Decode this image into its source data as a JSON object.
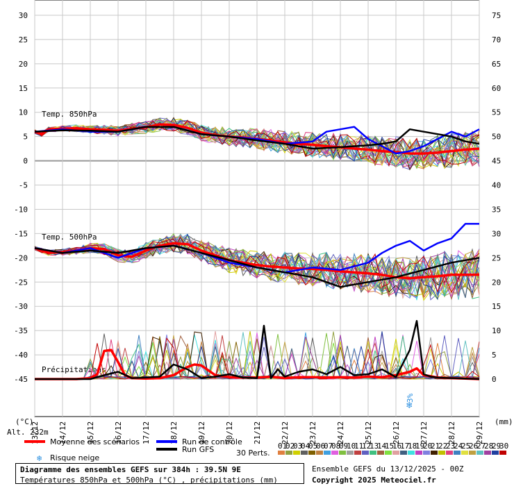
{
  "colors": {
    "mean": "#ff0000",
    "control": "#0000ff",
    "gfs": "#000000",
    "grid": "#c8c8c8",
    "snow_icon": "#2a8fe0"
  },
  "labels": {
    "temp850": "Temp. 850hPa",
    "temp500": "Temp. 500hPa",
    "precip": "Précipitations",
    "unit_left": "(°C)",
    "unit_right": "(mm)",
    "altitude": "Alt. 232m",
    "legend_mean": "Moyenne des scénarios",
    "legend_control": "Run de contrôle",
    "legend_gfs": "Run GFS",
    "legend_snow": "Risque neige",
    "perts_label": "30 Perts.",
    "snow_pct": "3%"
  },
  "pert_numbers": [
    "01",
    "02",
    "03",
    "04",
    "05",
    "06",
    "07",
    "08",
    "09",
    "10",
    "11",
    "12",
    "13",
    "14",
    "15",
    "16",
    "17",
    "18",
    "19",
    "20",
    "21",
    "22",
    "23",
    "24",
    "25",
    "26",
    "27",
    "28",
    "29",
    "30"
  ],
  "pert_colors": [
    "#e08040",
    "#90a040",
    "#d0d000",
    "#606060",
    "#806000",
    "#c08040",
    "#40a0e0",
    "#e060e0",
    "#80c040",
    "#a0a0a0",
    "#c04040",
    "#6060c0",
    "#40c080",
    "#a06040",
    "#80e040",
    "#e0a0a0",
    "#406080",
    "#40e0e0",
    "#c040c0",
    "#8080e0",
    "#402000",
    "#c0c000",
    "#e04080",
    "#4080c0",
    "#e0e040",
    "#c0a040",
    "#60c0c0",
    "#a040a0",
    "#2040a0",
    "#c00000"
  ],
  "info": {
    "title": "Diagramme des ensembles GEFS sur 384h : 39.5N 9E",
    "subtitle": "Températures 850hPa et 500hPa (°C) , précipitations (mm)",
    "ensemble": "Ensemble GEFS du 13/12/2025 - 00Z",
    "copyright": "Copyright 2025 Meteociel.fr"
  },
  "chart_data": {
    "type": "line",
    "x_dates": [
      "13/12",
      "14/12",
      "15/12",
      "16/12",
      "17/12",
      "18/12",
      "19/12",
      "20/12",
      "21/12",
      "22/12",
      "23/12",
      "24/12",
      "25/12",
      "26/12",
      "27/12",
      "28/12",
      "29/12"
    ],
    "xlim_hours": [
      0,
      384
    ],
    "left_axis": {
      "label": "(°C)",
      "ticks": [
        30,
        25,
        20,
        15,
        10,
        5,
        0,
        -5,
        -10,
        -15,
        -20,
        -25,
        -30,
        -35,
        -40,
        -45
      ],
      "ylim": [
        -45,
        30
      ]
    },
    "right_axis": {
      "label": "(mm)",
      "ticks": [
        75,
        70,
        65,
        60,
        55,
        50,
        45,
        40,
        35,
        30,
        25,
        20,
        15,
        10,
        5,
        0
      ],
      "ylim": [
        0,
        75
      ]
    },
    "grid": true,
    "series": [
      {
        "name": "Moyenne des scénarios",
        "panel": "Temp. 850hPa",
        "hours": [
          0,
          6,
          12,
          24,
          36,
          48,
          60,
          72,
          84,
          96,
          108,
          120,
          132,
          144,
          156,
          168,
          180,
          192,
          204,
          216,
          228,
          240,
          252,
          264,
          276,
          288,
          300,
          312,
          324,
          336,
          348,
          360,
          372,
          384
        ],
        "values": [
          6.0,
          5.5,
          6.5,
          6.6,
          6.7,
          6.5,
          6.4,
          6.2,
          6.6,
          6.9,
          7.5,
          7.4,
          6.8,
          5.8,
          5.3,
          5.0,
          4.8,
          4.5,
          4.2,
          3.8,
          3.5,
          3.3,
          3.0,
          2.8,
          2.5,
          2.3,
          2.0,
          1.8,
          1.5,
          1.5,
          1.7,
          2.0,
          2.3,
          2.5
        ]
      },
      {
        "name": "Moyenne des scénarios",
        "panel": "Temp. 500hPa",
        "hours": [
          0,
          6,
          12,
          24,
          36,
          48,
          60,
          72,
          84,
          96,
          108,
          120,
          132,
          144,
          156,
          168,
          180,
          192,
          204,
          216,
          228,
          240,
          252,
          264,
          276,
          288,
          300,
          312,
          324,
          336,
          348,
          360,
          372,
          384
        ],
        "values": [
          -18.0,
          -18.5,
          -19.0,
          -18.8,
          -18.5,
          -18.0,
          -18.2,
          -19.5,
          -19.8,
          -18.5,
          -17.5,
          -17.0,
          -17.2,
          -18.5,
          -19.5,
          -20.5,
          -21.0,
          -21.5,
          -21.8,
          -22.0,
          -22.2,
          -22.3,
          -22.5,
          -22.8,
          -23.0,
          -23.2,
          -23.5,
          -24.0,
          -24.2,
          -24.0,
          -23.8,
          -23.5,
          -23.5,
          -23.5
        ]
      },
      {
        "name": "Moyenne des scénarios",
        "panel": "Précipitations",
        "unit": "mm",
        "hours": [
          0,
          12,
          24,
          36,
          48,
          54,
          60,
          66,
          72,
          78,
          84,
          96,
          108,
          120,
          132,
          138,
          144,
          150,
          156,
          168,
          180,
          192,
          204,
          216,
          228,
          240,
          252,
          264,
          276,
          288,
          300,
          312,
          324,
          330,
          336,
          342,
          348,
          360,
          372,
          384
        ],
        "values": [
          0,
          0,
          0,
          0,
          0.2,
          1.0,
          5.8,
          6.0,
          3.5,
          0.8,
          0.2,
          0.1,
          0.2,
          0.8,
          2.5,
          3.0,
          2.8,
          1.8,
          0.8,
          0.4,
          0.3,
          0.3,
          0.5,
          0.2,
          0.4,
          0.4,
          0.3,
          0.4,
          0.3,
          0.5,
          0.4,
          0.8,
          1.5,
          2.2,
          0.8,
          0.6,
          0.3,
          0.2,
          0.1,
          0.0
        ]
      },
      {
        "name": "Run de contrôle",
        "panel": "Temp. 850hPa",
        "hours": [
          0,
          24,
          48,
          72,
          96,
          120,
          144,
          168,
          192,
          216,
          240,
          252,
          264,
          276,
          288,
          300,
          312,
          324,
          336,
          348,
          360,
          372,
          384
        ],
        "values": [
          6.0,
          6.5,
          6.0,
          6.0,
          7.0,
          7.0,
          5.5,
          5.0,
          4.5,
          3.5,
          4.0,
          6.0,
          6.5,
          7.0,
          4.5,
          3.0,
          1.5,
          2.0,
          3.0,
          4.5,
          6.0,
          5.0,
          6.5
        ]
      },
      {
        "name": "Run de contrôle",
        "panel": "Temp. 500hPa",
        "hours": [
          0,
          24,
          48,
          72,
          96,
          120,
          144,
          168,
          192,
          216,
          240,
          264,
          288,
          300,
          312,
          324,
          336,
          348,
          360,
          372,
          384
        ],
        "values": [
          -18.0,
          -19.0,
          -18.0,
          -20.0,
          -18.0,
          -17.5,
          -19.0,
          -21.0,
          -22.0,
          -23.0,
          -22.0,
          -22.5,
          -21.0,
          -19.0,
          -17.5,
          -16.5,
          -18.5,
          -17.0,
          -16.0,
          -13.0,
          -13.0
        ]
      },
      {
        "name": "Run GFS",
        "panel": "Temp. 850hPa",
        "hours": [
          0,
          24,
          48,
          72,
          96,
          120,
          144,
          168,
          192,
          216,
          240,
          264,
          288,
          300,
          312,
          324,
          336,
          348,
          360,
          372,
          384
        ],
        "values": [
          6.0,
          6.3,
          6.2,
          6.0,
          7.0,
          7.0,
          5.5,
          5.0,
          4.2,
          3.5,
          2.5,
          2.8,
          3.2,
          3.5,
          4.0,
          6.5,
          6.0,
          5.5,
          5.0,
          4.0,
          3.5
        ]
      },
      {
        "name": "Run GFS",
        "panel": "Temp. 500hPa",
        "hours": [
          0,
          24,
          48,
          72,
          96,
          120,
          144,
          168,
          192,
          216,
          240,
          264,
          288,
          312,
          336,
          360,
          384
        ],
        "values": [
          -18.0,
          -19.0,
          -18.5,
          -19.0,
          -18.0,
          -17.5,
          -19.0,
          -20.5,
          -22.0,
          -23.0,
          -24.0,
          -26.0,
          -25.0,
          -24.0,
          -22.5,
          -21.0,
          -20.0
        ]
      },
      {
        "name": "Run GFS",
        "panel": "Précipitations",
        "unit": "mm",
        "hours": [
          0,
          48,
          60,
          72,
          84,
          96,
          108,
          120,
          132,
          144,
          156,
          168,
          180,
          192,
          198,
          204,
          210,
          216,
          228,
          240,
          252,
          264,
          276,
          288,
          300,
          312,
          324,
          330,
          336,
          342,
          348,
          360,
          372,
          384
        ],
        "values": [
          0,
          0,
          0.8,
          1.5,
          0.2,
          0.3,
          0.5,
          3.0,
          2.0,
          0.2,
          0.5,
          1.0,
          0.3,
          0.2,
          11.0,
          0.2,
          2.0,
          0.5,
          1.5,
          2.0,
          1.0,
          2.5,
          0.8,
          1.0,
          2.0,
          0.4,
          6.0,
          12.0,
          1.0,
          0.5,
          0.3,
          0.2,
          0.1,
          0.0
        ]
      }
    ],
    "annotation": {
      "label": "Risque neige",
      "value": "3%",
      "x_hours": 324
    }
  }
}
